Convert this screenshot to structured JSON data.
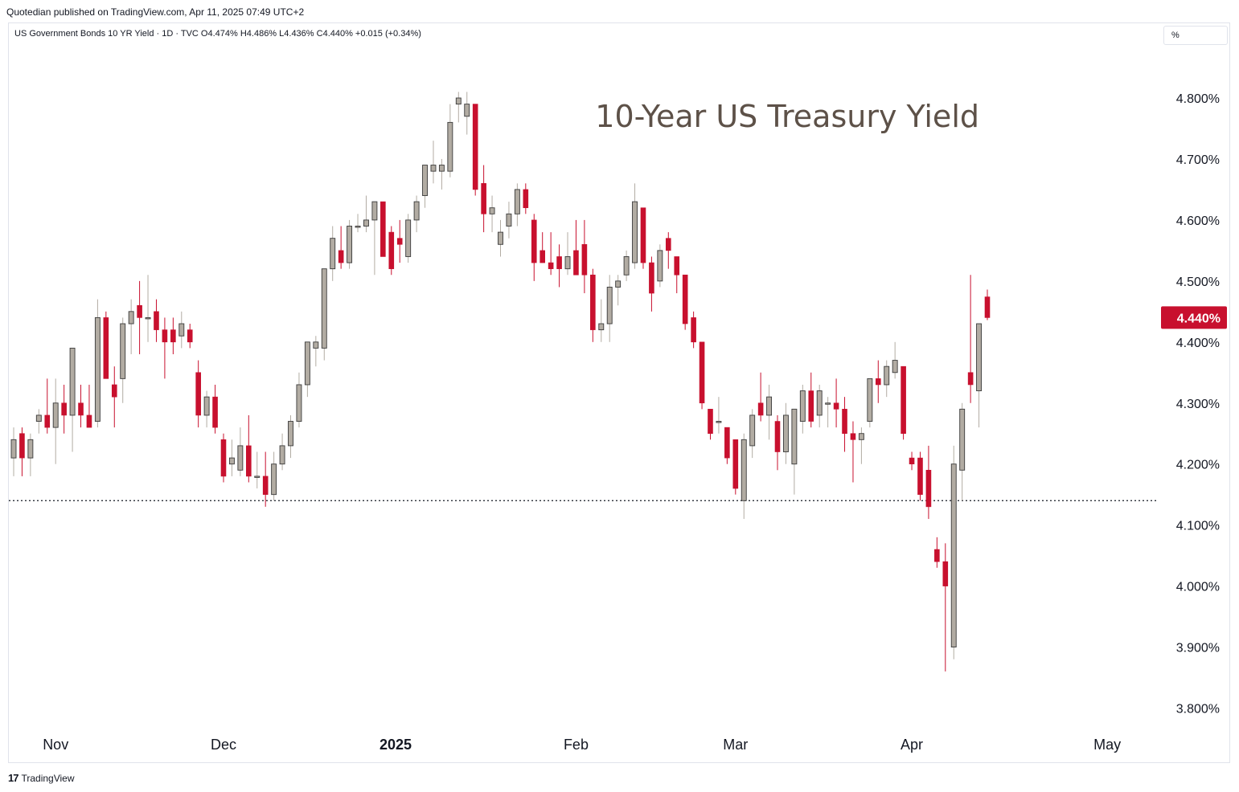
{
  "header": {
    "published": "Quotedian published on TradingView.com, Apr 11, 2025 07:49 UTC+2",
    "legend": "US Government Bonds 10 YR Yield · 1D · TVC  O4.474%  H4.486%  L4.436%  C4.440%  +0.015 (+0.34%)",
    "unit": "%"
  },
  "footer": {
    "brand": "TradingView",
    "logo_icon": "tradingview-logo-icon"
  },
  "colors": {
    "up": "#b2aca3",
    "down": "#c8102e",
    "last_price_bg": "#c8102e",
    "title": "#5d5148"
  },
  "chart_data": {
    "type": "candlestick",
    "title": "10-Year US Treasury Yield",
    "y_axis": {
      "ticks": [
        "4.800%",
        "4.700%",
        "4.600%",
        "4.500%",
        "4.400%",
        "4.300%",
        "4.200%",
        "4.100%",
        "4.000%",
        "3.900%",
        "3.800%"
      ],
      "tick_values": [
        4.8,
        4.7,
        4.6,
        4.5,
        4.4,
        4.3,
        4.2,
        4.1,
        4.0,
        3.9,
        3.8
      ],
      "range": [
        3.73,
        4.93
      ],
      "position": "right"
    },
    "x_axis": {
      "labels": [
        "Nov",
        "Dec",
        "2025",
        "Feb",
        "Mar",
        "Apr",
        "May"
      ],
      "label_dates": [
        "2024-11-01",
        "2024-12-02",
        "2025-01-01",
        "2025-02-03",
        "2025-03-03",
        "2025-04-01",
        "2025-05-01"
      ]
    },
    "last_price": {
      "value": 4.44,
      "label": "4.440%"
    },
    "reference_line": {
      "value": 4.14,
      "style": "dotted"
    },
    "candles": [
      {
        "date": "2024-10-25",
        "o": 4.21,
        "h": 4.26,
        "l": 4.18,
        "c": 4.24
      },
      {
        "date": "2024-10-28",
        "o": 4.25,
        "h": 4.26,
        "l": 4.18,
        "c": 4.21
      },
      {
        "date": "2024-10-29",
        "o": 4.21,
        "h": 4.25,
        "l": 4.18,
        "c": 4.24
      },
      {
        "date": "2024-10-30",
        "o": 4.27,
        "h": 4.29,
        "l": 4.25,
        "c": 4.28
      },
      {
        "date": "2024-10-31",
        "o": 4.28,
        "h": 4.34,
        "l": 4.25,
        "c": 4.26
      },
      {
        "date": "2024-11-01",
        "o": 4.26,
        "h": 4.34,
        "l": 4.2,
        "c": 4.3
      },
      {
        "date": "2024-11-04",
        "o": 4.3,
        "h": 4.33,
        "l": 4.25,
        "c": 4.28
      },
      {
        "date": "2024-11-05",
        "o": 4.28,
        "h": 4.39,
        "l": 4.22,
        "c": 4.39
      },
      {
        "date": "2024-11-06",
        "o": 4.3,
        "h": 4.33,
        "l": 4.26,
        "c": 4.28
      },
      {
        "date": "2024-11-07",
        "o": 4.28,
        "h": 4.33,
        "l": 4.26,
        "c": 4.26
      },
      {
        "date": "2024-11-08",
        "o": 4.27,
        "h": 4.47,
        "l": 4.26,
        "c": 4.44
      },
      {
        "date": "2024-11-11",
        "o": 4.44,
        "h": 4.45,
        "l": 4.34,
        "c": 4.34
      },
      {
        "date": "2024-11-12",
        "o": 4.33,
        "h": 4.36,
        "l": 4.26,
        "c": 4.31
      },
      {
        "date": "2024-11-13",
        "o": 4.34,
        "h": 4.44,
        "l": 4.3,
        "c": 4.43
      },
      {
        "date": "2024-11-14",
        "o": 4.43,
        "h": 4.47,
        "l": 4.38,
        "c": 4.45
      },
      {
        "date": "2024-11-15",
        "o": 4.46,
        "h": 4.5,
        "l": 4.38,
        "c": 4.44
      },
      {
        "date": "2024-11-18",
        "o": 4.44,
        "h": 4.51,
        "l": 4.4,
        "c": 4.44
      },
      {
        "date": "2024-11-19",
        "o": 4.45,
        "h": 4.47,
        "l": 4.4,
        "c": 4.42
      },
      {
        "date": "2024-11-20",
        "o": 4.42,
        "h": 4.44,
        "l": 4.34,
        "c": 4.4
      },
      {
        "date": "2024-11-21",
        "o": 4.42,
        "h": 4.44,
        "l": 4.38,
        "c": 4.4
      },
      {
        "date": "2024-11-22",
        "o": 4.41,
        "h": 4.45,
        "l": 4.39,
        "c": 4.43
      },
      {
        "date": "2024-11-25",
        "o": 4.42,
        "h": 4.43,
        "l": 4.39,
        "c": 4.4
      },
      {
        "date": "2024-11-26",
        "o": 4.35,
        "h": 4.37,
        "l": 4.26,
        "c": 4.28
      },
      {
        "date": "2024-11-27",
        "o": 4.28,
        "h": 4.32,
        "l": 4.26,
        "c": 4.31
      },
      {
        "date": "2024-11-29",
        "o": 4.31,
        "h": 4.33,
        "l": 4.25,
        "c": 4.26
      },
      {
        "date": "2024-12-02",
        "o": 4.24,
        "h": 4.25,
        "l": 4.17,
        "c": 4.18
      },
      {
        "date": "2024-12-03",
        "o": 4.2,
        "h": 4.24,
        "l": 4.18,
        "c": 4.21
      },
      {
        "date": "2024-12-04",
        "o": 4.19,
        "h": 4.26,
        "l": 4.18,
        "c": 4.23
      },
      {
        "date": "2024-12-05",
        "o": 4.23,
        "h": 4.28,
        "l": 4.17,
        "c": 4.18
      },
      {
        "date": "2024-12-06",
        "o": 4.18,
        "h": 4.22,
        "l": 4.16,
        "c": 4.18
      },
      {
        "date": "2024-12-09",
        "o": 4.18,
        "h": 4.22,
        "l": 4.13,
        "c": 4.15
      },
      {
        "date": "2024-12-10",
        "o": 4.15,
        "h": 4.22,
        "l": 4.14,
        "c": 4.2
      },
      {
        "date": "2024-12-11",
        "o": 4.2,
        "h": 4.25,
        "l": 4.19,
        "c": 4.23
      },
      {
        "date": "2024-12-12",
        "o": 4.23,
        "h": 4.28,
        "l": 4.21,
        "c": 4.27
      },
      {
        "date": "2024-12-13",
        "o": 4.27,
        "h": 4.35,
        "l": 4.26,
        "c": 4.33
      },
      {
        "date": "2024-12-16",
        "o": 4.33,
        "h": 4.4,
        "l": 4.31,
        "c": 4.4
      },
      {
        "date": "2024-12-17",
        "o": 4.39,
        "h": 4.41,
        "l": 4.36,
        "c": 4.4
      },
      {
        "date": "2024-12-18",
        "o": 4.39,
        "h": 4.52,
        "l": 4.37,
        "c": 4.52
      },
      {
        "date": "2024-12-19",
        "o": 4.52,
        "h": 4.59,
        "l": 4.5,
        "c": 4.57
      },
      {
        "date": "2024-12-20",
        "o": 4.55,
        "h": 4.59,
        "l": 4.52,
        "c": 4.53
      },
      {
        "date": "2024-12-23",
        "o": 4.53,
        "h": 4.6,
        "l": 4.52,
        "c": 4.59
      },
      {
        "date": "2024-12-24",
        "o": 4.59,
        "h": 4.61,
        "l": 4.58,
        "c": 4.59
      },
      {
        "date": "2024-12-26",
        "o": 4.59,
        "h": 4.64,
        "l": 4.58,
        "c": 4.6
      },
      {
        "date": "2024-12-27",
        "o": 4.6,
        "h": 4.63,
        "l": 4.51,
        "c": 4.63
      },
      {
        "date": "2024-12-30",
        "o": 4.63,
        "h": 4.63,
        "l": 4.54,
        "c": 4.54
      },
      {
        "date": "2024-12-31",
        "o": 4.58,
        "h": 4.59,
        "l": 4.51,
        "c": 4.52
      },
      {
        "date": "2025-01-02",
        "o": 4.57,
        "h": 4.6,
        "l": 4.53,
        "c": 4.56
      },
      {
        "date": "2025-01-03",
        "o": 4.54,
        "h": 4.61,
        "l": 4.53,
        "c": 4.6
      },
      {
        "date": "2025-01-06",
        "o": 4.6,
        "h": 4.64,
        "l": 4.58,
        "c": 4.63
      },
      {
        "date": "2025-01-07",
        "o": 4.64,
        "h": 4.69,
        "l": 4.62,
        "c": 4.69
      },
      {
        "date": "2025-01-08",
        "o": 4.68,
        "h": 4.73,
        "l": 4.66,
        "c": 4.69
      },
      {
        "date": "2025-01-09",
        "o": 4.68,
        "h": 4.7,
        "l": 4.65,
        "c": 4.69
      },
      {
        "date": "2025-01-10",
        "o": 4.68,
        "h": 4.79,
        "l": 4.67,
        "c": 4.76
      },
      {
        "date": "2025-01-13",
        "o": 4.79,
        "h": 4.81,
        "l": 4.76,
        "c": 4.8
      },
      {
        "date": "2025-01-14",
        "o": 4.77,
        "h": 4.81,
        "l": 4.74,
        "c": 4.79
      },
      {
        "date": "2025-01-15",
        "o": 4.79,
        "h": 4.79,
        "l": 4.64,
        "c": 4.65
      },
      {
        "date": "2025-01-16",
        "o": 4.66,
        "h": 4.69,
        "l": 4.58,
        "c": 4.61
      },
      {
        "date": "2025-01-17",
        "o": 4.61,
        "h": 4.64,
        "l": 4.58,
        "c": 4.62
      },
      {
        "date": "2025-01-21",
        "o": 4.56,
        "h": 4.6,
        "l": 4.54,
        "c": 4.58
      },
      {
        "date": "2025-01-22",
        "o": 4.59,
        "h": 4.63,
        "l": 4.57,
        "c": 4.61
      },
      {
        "date": "2025-01-23",
        "o": 4.61,
        "h": 4.66,
        "l": 4.59,
        "c": 4.65
      },
      {
        "date": "2025-01-24",
        "o": 4.65,
        "h": 4.66,
        "l": 4.61,
        "c": 4.62
      },
      {
        "date": "2025-01-27",
        "o": 4.6,
        "h": 4.61,
        "l": 4.5,
        "c": 4.53
      },
      {
        "date": "2025-01-28",
        "o": 4.55,
        "h": 4.58,
        "l": 4.53,
        "c": 4.53
      },
      {
        "date": "2025-01-29",
        "o": 4.53,
        "h": 4.58,
        "l": 4.51,
        "c": 4.52
      },
      {
        "date": "2025-01-30",
        "o": 4.54,
        "h": 4.56,
        "l": 4.49,
        "c": 4.52
      },
      {
        "date": "2025-01-31",
        "o": 4.52,
        "h": 4.58,
        "l": 4.51,
        "c": 4.54
      },
      {
        "date": "2025-02-03",
        "o": 4.55,
        "h": 4.6,
        "l": 4.52,
        "c": 4.51
      },
      {
        "date": "2025-02-04",
        "o": 4.56,
        "h": 4.6,
        "l": 4.48,
        "c": 4.51
      },
      {
        "date": "2025-02-05",
        "o": 4.51,
        "h": 4.52,
        "l": 4.4,
        "c": 4.42
      },
      {
        "date": "2025-02-06",
        "o": 4.42,
        "h": 4.47,
        "l": 4.4,
        "c": 4.43
      },
      {
        "date": "2025-02-07",
        "o": 4.43,
        "h": 4.51,
        "l": 4.4,
        "c": 4.49
      },
      {
        "date": "2025-02-10",
        "o": 4.49,
        "h": 4.51,
        "l": 4.46,
        "c": 4.5
      },
      {
        "date": "2025-02-11",
        "o": 4.51,
        "h": 4.55,
        "l": 4.5,
        "c": 4.54
      },
      {
        "date": "2025-02-12",
        "o": 4.53,
        "h": 4.66,
        "l": 4.52,
        "c": 4.63
      },
      {
        "date": "2025-02-13",
        "o": 4.62,
        "h": 4.62,
        "l": 4.52,
        "c": 4.53
      },
      {
        "date": "2025-02-14",
        "o": 4.53,
        "h": 4.54,
        "l": 4.45,
        "c": 4.48
      },
      {
        "date": "2025-02-18",
        "o": 4.5,
        "h": 4.56,
        "l": 4.49,
        "c": 4.55
      },
      {
        "date": "2025-02-19",
        "o": 4.57,
        "h": 4.58,
        "l": 4.52,
        "c": 4.55
      },
      {
        "date": "2025-02-20",
        "o": 4.54,
        "h": 4.54,
        "l": 4.48,
        "c": 4.51
      },
      {
        "date": "2025-02-21",
        "o": 4.51,
        "h": 4.51,
        "l": 4.42,
        "c": 4.43
      },
      {
        "date": "2025-02-24",
        "o": 4.44,
        "h": 4.45,
        "l": 4.39,
        "c": 4.4
      },
      {
        "date": "2025-02-25",
        "o": 4.4,
        "h": 4.4,
        "l": 4.29,
        "c": 4.3
      },
      {
        "date": "2025-02-26",
        "o": 4.29,
        "h": 4.29,
        "l": 4.24,
        "c": 4.25
      },
      {
        "date": "2025-02-27",
        "o": 4.27,
        "h": 4.31,
        "l": 4.25,
        "c": 4.27
      },
      {
        "date": "2025-02-28",
        "o": 4.26,
        "h": 4.26,
        "l": 4.2,
        "c": 4.21
      },
      {
        "date": "2025-03-03",
        "o": 4.24,
        "h": 4.24,
        "l": 4.15,
        "c": 4.16
      },
      {
        "date": "2025-03-04",
        "o": 4.14,
        "h": 4.25,
        "l": 4.11,
        "c": 4.24
      },
      {
        "date": "2025-03-05",
        "o": 4.23,
        "h": 4.29,
        "l": 4.21,
        "c": 4.28
      },
      {
        "date": "2025-03-06",
        "o": 4.3,
        "h": 4.35,
        "l": 4.27,
        "c": 4.28
      },
      {
        "date": "2025-03-07",
        "o": 4.28,
        "h": 4.33,
        "l": 4.24,
        "c": 4.31
      },
      {
        "date": "2025-03-10",
        "o": 4.27,
        "h": 4.28,
        "l": 4.19,
        "c": 4.22
      },
      {
        "date": "2025-03-11",
        "o": 4.22,
        "h": 4.3,
        "l": 4.2,
        "c": 4.28
      },
      {
        "date": "2025-03-12",
        "o": 4.2,
        "h": 4.29,
        "l": 4.15,
        "c": 4.29
      },
      {
        "date": "2025-03-13",
        "o": 4.27,
        "h": 4.33,
        "l": 4.25,
        "c": 4.32
      },
      {
        "date": "2025-03-14",
        "o": 4.32,
        "h": 4.35,
        "l": 4.26,
        "c": 4.27
      },
      {
        "date": "2025-03-17",
        "o": 4.28,
        "h": 4.33,
        "l": 4.26,
        "c": 4.32
      },
      {
        "date": "2025-03-18",
        "o": 4.3,
        "h": 4.31,
        "l": 4.26,
        "c": 4.3
      },
      {
        "date": "2025-03-19",
        "o": 4.3,
        "h": 4.34,
        "l": 4.26,
        "c": 4.29
      },
      {
        "date": "2025-03-20",
        "o": 4.29,
        "h": 4.31,
        "l": 4.22,
        "c": 4.25
      },
      {
        "date": "2025-03-21",
        "o": 4.25,
        "h": 4.27,
        "l": 4.17,
        "c": 4.24
      },
      {
        "date": "2025-03-24",
        "o": 4.24,
        "h": 4.26,
        "l": 4.2,
        "c": 4.25
      },
      {
        "date": "2025-03-25",
        "o": 4.27,
        "h": 4.34,
        "l": 4.26,
        "c": 4.34
      },
      {
        "date": "2025-03-26",
        "o": 4.34,
        "h": 4.37,
        "l": 4.3,
        "c": 4.33
      },
      {
        "date": "2025-03-27",
        "o": 4.33,
        "h": 4.37,
        "l": 4.31,
        "c": 4.36
      },
      {
        "date": "2025-03-28",
        "o": 4.35,
        "h": 4.4,
        "l": 4.34,
        "c": 4.37
      },
      {
        "date": "2025-03-31",
        "o": 4.36,
        "h": 4.36,
        "l": 4.24,
        "c": 4.25
      },
      {
        "date": "2025-04-01",
        "o": 4.21,
        "h": 4.22,
        "l": 4.19,
        "c": 4.2
      },
      {
        "date": "2025-04-02",
        "o": 4.21,
        "h": 4.22,
        "l": 4.14,
        "c": 4.15
      },
      {
        "date": "2025-04-03",
        "o": 4.19,
        "h": 4.23,
        "l": 4.11,
        "c": 4.13
      },
      {
        "date": "2025-04-04",
        "o": 4.06,
        "h": 4.08,
        "l": 4.03,
        "c": 4.04
      },
      {
        "date": "2025-04-07",
        "o": 4.04,
        "h": 4.07,
        "l": 3.86,
        "c": 4.0
      },
      {
        "date": "2025-04-08",
        "o": 3.9,
        "h": 4.23,
        "l": 3.88,
        "c": 4.2
      },
      {
        "date": "2025-04-09",
        "o": 4.19,
        "h": 4.3,
        "l": 4.14,
        "c": 4.29
      },
      {
        "date": "2025-04-10",
        "o": 4.35,
        "h": 4.51,
        "l": 4.3,
        "c": 4.33
      },
      {
        "date": "2025-04-10b",
        "o": 4.32,
        "h": 4.43,
        "l": 4.26,
        "c": 4.43
      },
      {
        "date": "2025-04-11",
        "o": 4.474,
        "h": 4.486,
        "l": 4.436,
        "c": 4.44
      }
    ]
  }
}
